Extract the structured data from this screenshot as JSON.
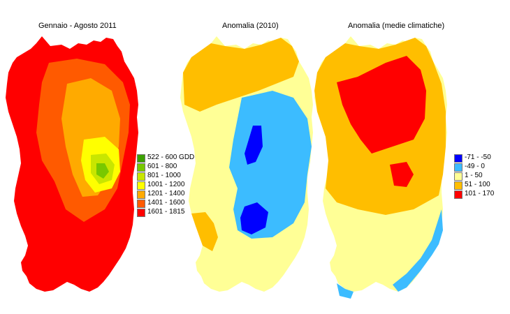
{
  "maps": [
    {
      "title": "Gennaio - Agosto 2011",
      "legend": [
        {
          "label": "522 - 600 GDD",
          "color": "#3ca000"
        },
        {
          "label": "601 - 800",
          "color": "#78c800"
        },
        {
          "label": "801 - 1000",
          "color": "#c8e600"
        },
        {
          "label": "1001 - 1200",
          "color": "#ffff00"
        },
        {
          "label": "1201 - 1400",
          "color": "#ffaa00"
        },
        {
          "label": "1401 - 1600",
          "color": "#ff5a00"
        },
        {
          "label": "1601 - 1815",
          "color": "#ff0000"
        }
      ]
    },
    {
      "title": "Anomalia (2010)",
      "legend": []
    },
    {
      "title": "Anomalia (medie climatiche)",
      "legend": [
        {
          "label": "-71 - -50",
          "color": "#0000ff"
        },
        {
          "label": "-49 - 0",
          "color": "#3cbcff"
        },
        {
          "label": "1 - 50",
          "color": "#ffff96"
        },
        {
          "label": "51 - 100",
          "color": "#ffbe00"
        },
        {
          "label": "101 - 170",
          "color": "#ff0000"
        }
      ]
    }
  ]
}
